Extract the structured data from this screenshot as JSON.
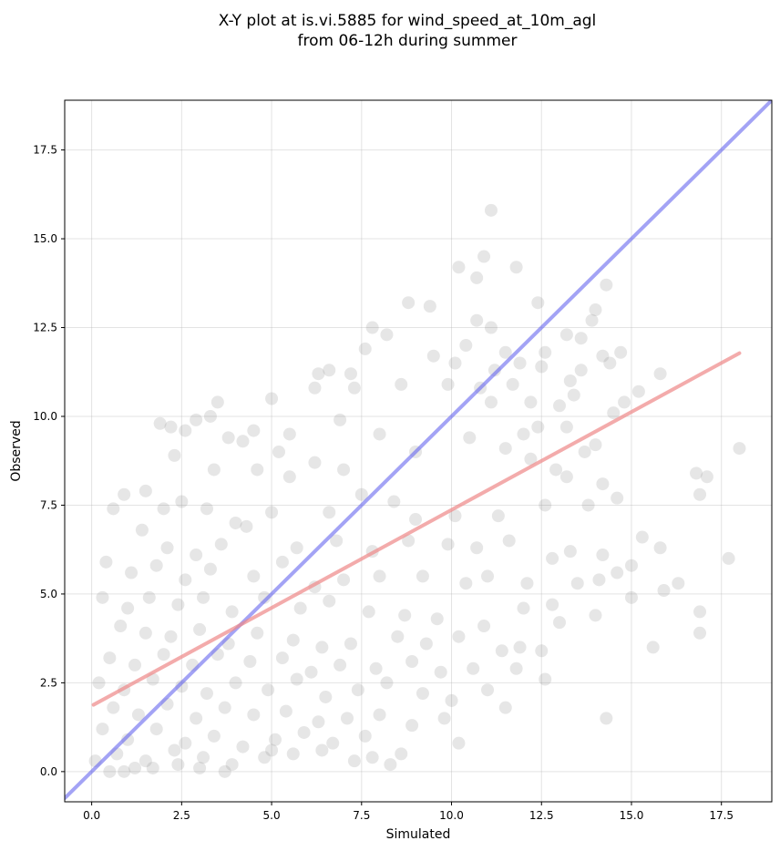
{
  "chart_data": {
    "type": "scatter",
    "title_line1": "X-Y plot at is.vi.5885 for wind_speed_at_10m_agl",
    "title_line2": "from 06-12h during summer",
    "xlabel": "Simulated",
    "ylabel": "Observed",
    "xlim": [
      -0.75,
      18.9
    ],
    "ylim": [
      -0.85,
      18.9
    ],
    "xticks": [
      0.0,
      2.5,
      5.0,
      7.5,
      10.0,
      12.5,
      15.0,
      17.5
    ],
    "yticks": [
      0.0,
      2.5,
      5.0,
      7.5,
      10.0,
      12.5,
      15.0,
      17.5
    ],
    "grid": true,
    "point_color": "#808080",
    "identity_line": {
      "color": "#6666ee",
      "x": [
        -0.75,
        18.9
      ],
      "y": [
        -0.75,
        18.9
      ]
    },
    "fit_line": {
      "color": "#ee8888",
      "x": [
        0.05,
        18.0
      ],
      "y": [
        1.88,
        11.78
      ]
    },
    "points": [
      [
        11.1,
        15.8
      ],
      [
        10.9,
        14.5
      ],
      [
        10.2,
        14.2
      ],
      [
        11.8,
        14.2
      ],
      [
        10.7,
        13.9
      ],
      [
        14.3,
        13.7
      ],
      [
        8.8,
        13.2
      ],
      [
        9.4,
        13.1
      ],
      [
        12.4,
        13.2
      ],
      [
        14.0,
        13.0
      ],
      [
        10.7,
        12.7
      ],
      [
        11.1,
        12.5
      ],
      [
        13.2,
        12.3
      ],
      [
        13.6,
        12.2
      ],
      [
        13.9,
        12.7
      ],
      [
        7.8,
        12.5
      ],
      [
        8.2,
        12.3
      ],
      [
        10.4,
        12.0
      ],
      [
        11.5,
        11.8
      ],
      [
        12.6,
        11.8
      ],
      [
        14.7,
        11.8
      ],
      [
        14.2,
        11.7
      ],
      [
        7.6,
        11.9
      ],
      [
        7.2,
        11.2
      ],
      [
        6.3,
        11.2
      ],
      [
        6.6,
        11.3
      ],
      [
        9.5,
        11.7
      ],
      [
        10.1,
        11.5
      ],
      [
        11.2,
        11.3
      ],
      [
        11.9,
        11.5
      ],
      [
        12.5,
        11.4
      ],
      [
        13.6,
        11.3
      ],
      [
        14.4,
        11.5
      ],
      [
        13.3,
        11.0
      ],
      [
        9.9,
        10.9
      ],
      [
        10.8,
        10.8
      ],
      [
        11.7,
        10.9
      ],
      [
        13.4,
        10.6
      ],
      [
        15.2,
        10.7
      ],
      [
        15.8,
        11.2
      ],
      [
        6.2,
        10.8
      ],
      [
        7.3,
        10.8
      ],
      [
        8.6,
        10.9
      ],
      [
        11.1,
        10.4
      ],
      [
        12.2,
        10.4
      ],
      [
        13.0,
        10.3
      ],
      [
        14.5,
        10.1
      ],
      [
        14.8,
        10.4
      ],
      [
        3.5,
        10.4
      ],
      [
        5.0,
        10.5
      ],
      [
        6.9,
        9.9
      ],
      [
        1.9,
        9.8
      ],
      [
        2.2,
        9.7
      ],
      [
        2.6,
        9.6
      ],
      [
        2.9,
        9.9
      ],
      [
        3.3,
        10.0
      ],
      [
        4.5,
        9.6
      ],
      [
        5.5,
        9.5
      ],
      [
        12.4,
        9.7
      ],
      [
        13.2,
        9.7
      ],
      [
        14.0,
        9.2
      ],
      [
        12.0,
        9.5
      ],
      [
        11.5,
        9.1
      ],
      [
        13.7,
        9.0
      ],
      [
        10.5,
        9.4
      ],
      [
        2.3,
        8.9
      ],
      [
        3.8,
        9.4
      ],
      [
        4.2,
        9.3
      ],
      [
        5.2,
        9.0
      ],
      [
        8.0,
        9.5
      ],
      [
        9.0,
        9.0
      ],
      [
        3.4,
        8.5
      ],
      [
        4.6,
        8.5
      ],
      [
        5.5,
        8.3
      ],
      [
        6.2,
        8.7
      ],
      [
        7.0,
        8.5
      ],
      [
        12.9,
        8.5
      ],
      [
        13.2,
        8.3
      ],
      [
        14.2,
        8.1
      ],
      [
        16.8,
        8.4
      ],
      [
        17.1,
        8.3
      ],
      [
        18.0,
        9.1
      ],
      [
        12.2,
        8.8
      ],
      [
        0.9,
        7.8
      ],
      [
        1.5,
        7.9
      ],
      [
        2.0,
        7.4
      ],
      [
        2.5,
        7.6
      ],
      [
        3.2,
        7.4
      ],
      [
        4.0,
        7.0
      ],
      [
        5.0,
        7.3
      ],
      [
        6.6,
        7.3
      ],
      [
        7.5,
        7.8
      ],
      [
        8.4,
        7.6
      ],
      [
        9.0,
        7.1
      ],
      [
        10.1,
        7.2
      ],
      [
        11.3,
        7.2
      ],
      [
        12.6,
        7.5
      ],
      [
        13.8,
        7.5
      ],
      [
        14.6,
        7.7
      ],
      [
        16.9,
        7.8
      ],
      [
        0.6,
        7.4
      ],
      [
        1.4,
        6.8
      ],
      [
        2.1,
        6.3
      ],
      [
        2.9,
        6.1
      ],
      [
        3.6,
        6.4
      ],
      [
        4.3,
        6.9
      ],
      [
        5.7,
        6.3
      ],
      [
        6.8,
        6.5
      ],
      [
        7.8,
        6.2
      ],
      [
        8.8,
        6.5
      ],
      [
        9.9,
        6.4
      ],
      [
        10.7,
        6.3
      ],
      [
        11.6,
        6.5
      ],
      [
        12.8,
        6.0
      ],
      [
        13.3,
        6.2
      ],
      [
        14.2,
        6.1
      ],
      [
        15.3,
        6.6
      ],
      [
        15.8,
        6.3
      ],
      [
        0.4,
        5.9
      ],
      [
        1.1,
        5.6
      ],
      [
        1.8,
        5.8
      ],
      [
        2.6,
        5.4
      ],
      [
        3.3,
        5.7
      ],
      [
        4.5,
        5.5
      ],
      [
        5.3,
        5.9
      ],
      [
        6.2,
        5.2
      ],
      [
        7.0,
        5.4
      ],
      [
        8.0,
        5.5
      ],
      [
        9.2,
        5.5
      ],
      [
        10.4,
        5.3
      ],
      [
        11.0,
        5.5
      ],
      [
        12.1,
        5.3
      ],
      [
        13.5,
        5.3
      ],
      [
        14.1,
        5.4
      ],
      [
        14.6,
        5.6
      ],
      [
        15.0,
        5.8
      ],
      [
        16.3,
        5.3
      ],
      [
        17.7,
        6.0
      ],
      [
        0.3,
        4.9
      ],
      [
        1.0,
        4.6
      ],
      [
        1.6,
        4.9
      ],
      [
        2.4,
        4.7
      ],
      [
        3.1,
        4.9
      ],
      [
        3.9,
        4.5
      ],
      [
        4.8,
        4.9
      ],
      [
        5.8,
        4.6
      ],
      [
        6.6,
        4.8
      ],
      [
        7.7,
        4.5
      ],
      [
        8.7,
        4.4
      ],
      [
        9.6,
        4.3
      ],
      [
        10.9,
        4.1
      ],
      [
        12.0,
        4.6
      ],
      [
        12.8,
        4.7
      ],
      [
        13.0,
        4.2
      ],
      [
        14.0,
        4.4
      ],
      [
        15.0,
        4.9
      ],
      [
        15.9,
        5.1
      ],
      [
        16.9,
        4.5
      ],
      [
        0.8,
        4.1
      ],
      [
        1.5,
        3.9
      ],
      [
        2.2,
        3.8
      ],
      [
        3.0,
        4.0
      ],
      [
        3.8,
        3.6
      ],
      [
        4.6,
        3.9
      ],
      [
        5.6,
        3.7
      ],
      [
        6.4,
        3.5
      ],
      [
        7.2,
        3.6
      ],
      [
        8.5,
        3.8
      ],
      [
        9.3,
        3.6
      ],
      [
        10.2,
        3.8
      ],
      [
        11.4,
        3.4
      ],
      [
        11.9,
        3.5
      ],
      [
        12.5,
        3.4
      ],
      [
        15.6,
        3.5
      ],
      [
        16.9,
        3.9
      ],
      [
        0.5,
        3.2
      ],
      [
        1.2,
        3.0
      ],
      [
        2.0,
        3.3
      ],
      [
        2.8,
        3.0
      ],
      [
        3.5,
        3.3
      ],
      [
        4.4,
        3.1
      ],
      [
        5.3,
        3.2
      ],
      [
        6.1,
        2.8
      ],
      [
        6.9,
        3.0
      ],
      [
        7.9,
        2.9
      ],
      [
        8.9,
        3.1
      ],
      [
        9.7,
        2.8
      ],
      [
        10.6,
        2.9
      ],
      [
        11.8,
        2.9
      ],
      [
        12.6,
        2.6
      ],
      [
        0.2,
        2.5
      ],
      [
        0.9,
        2.3
      ],
      [
        1.7,
        2.6
      ],
      [
        2.5,
        2.4
      ],
      [
        3.2,
        2.2
      ],
      [
        4.0,
        2.5
      ],
      [
        4.9,
        2.3
      ],
      [
        5.7,
        2.6
      ],
      [
        6.5,
        2.1
      ],
      [
        7.4,
        2.3
      ],
      [
        8.2,
        2.5
      ],
      [
        9.2,
        2.2
      ],
      [
        10.0,
        2.0
      ],
      [
        11.0,
        2.3
      ],
      [
        0.6,
        1.8
      ],
      [
        1.3,
        1.6
      ],
      [
        2.1,
        1.9
      ],
      [
        2.9,
        1.5
      ],
      [
        3.7,
        1.8
      ],
      [
        4.5,
        1.6
      ],
      [
        5.4,
        1.7
      ],
      [
        6.3,
        1.4
      ],
      [
        7.1,
        1.5
      ],
      [
        8.0,
        1.6
      ],
      [
        8.9,
        1.3
      ],
      [
        9.8,
        1.5
      ],
      [
        11.5,
        1.8
      ],
      [
        14.3,
        1.5
      ],
      [
        0.3,
        1.2
      ],
      [
        1.0,
        0.9
      ],
      [
        1.8,
        1.2
      ],
      [
        2.6,
        0.8
      ],
      [
        3.4,
        1.0
      ],
      [
        4.2,
        0.7
      ],
      [
        5.1,
        0.9
      ],
      [
        5.9,
        1.1
      ],
      [
        6.7,
        0.8
      ],
      [
        7.6,
        1.0
      ],
      [
        8.6,
        0.5
      ],
      [
        10.2,
        0.8
      ],
      [
        0.7,
        0.5
      ],
      [
        1.5,
        0.3
      ],
      [
        2.3,
        0.6
      ],
      [
        3.1,
        0.4
      ],
      [
        3.9,
        0.2
      ],
      [
        4.8,
        0.4
      ],
      [
        5.6,
        0.5
      ],
      [
        6.4,
        0.6
      ],
      [
        7.3,
        0.3
      ],
      [
        8.3,
        0.2
      ],
      [
        0.1,
        0.3
      ],
      [
        0.9,
        0.0
      ],
      [
        1.7,
        0.1
      ],
      [
        3.0,
        0.1
      ],
      [
        3.7,
        0.0
      ],
      [
        7.8,
        0.4
      ],
      [
        5.0,
        0.6
      ],
      [
        2.4,
        0.2
      ],
      [
        0.5,
        0.0
      ],
      [
        1.2,
        0.1
      ]
    ]
  }
}
